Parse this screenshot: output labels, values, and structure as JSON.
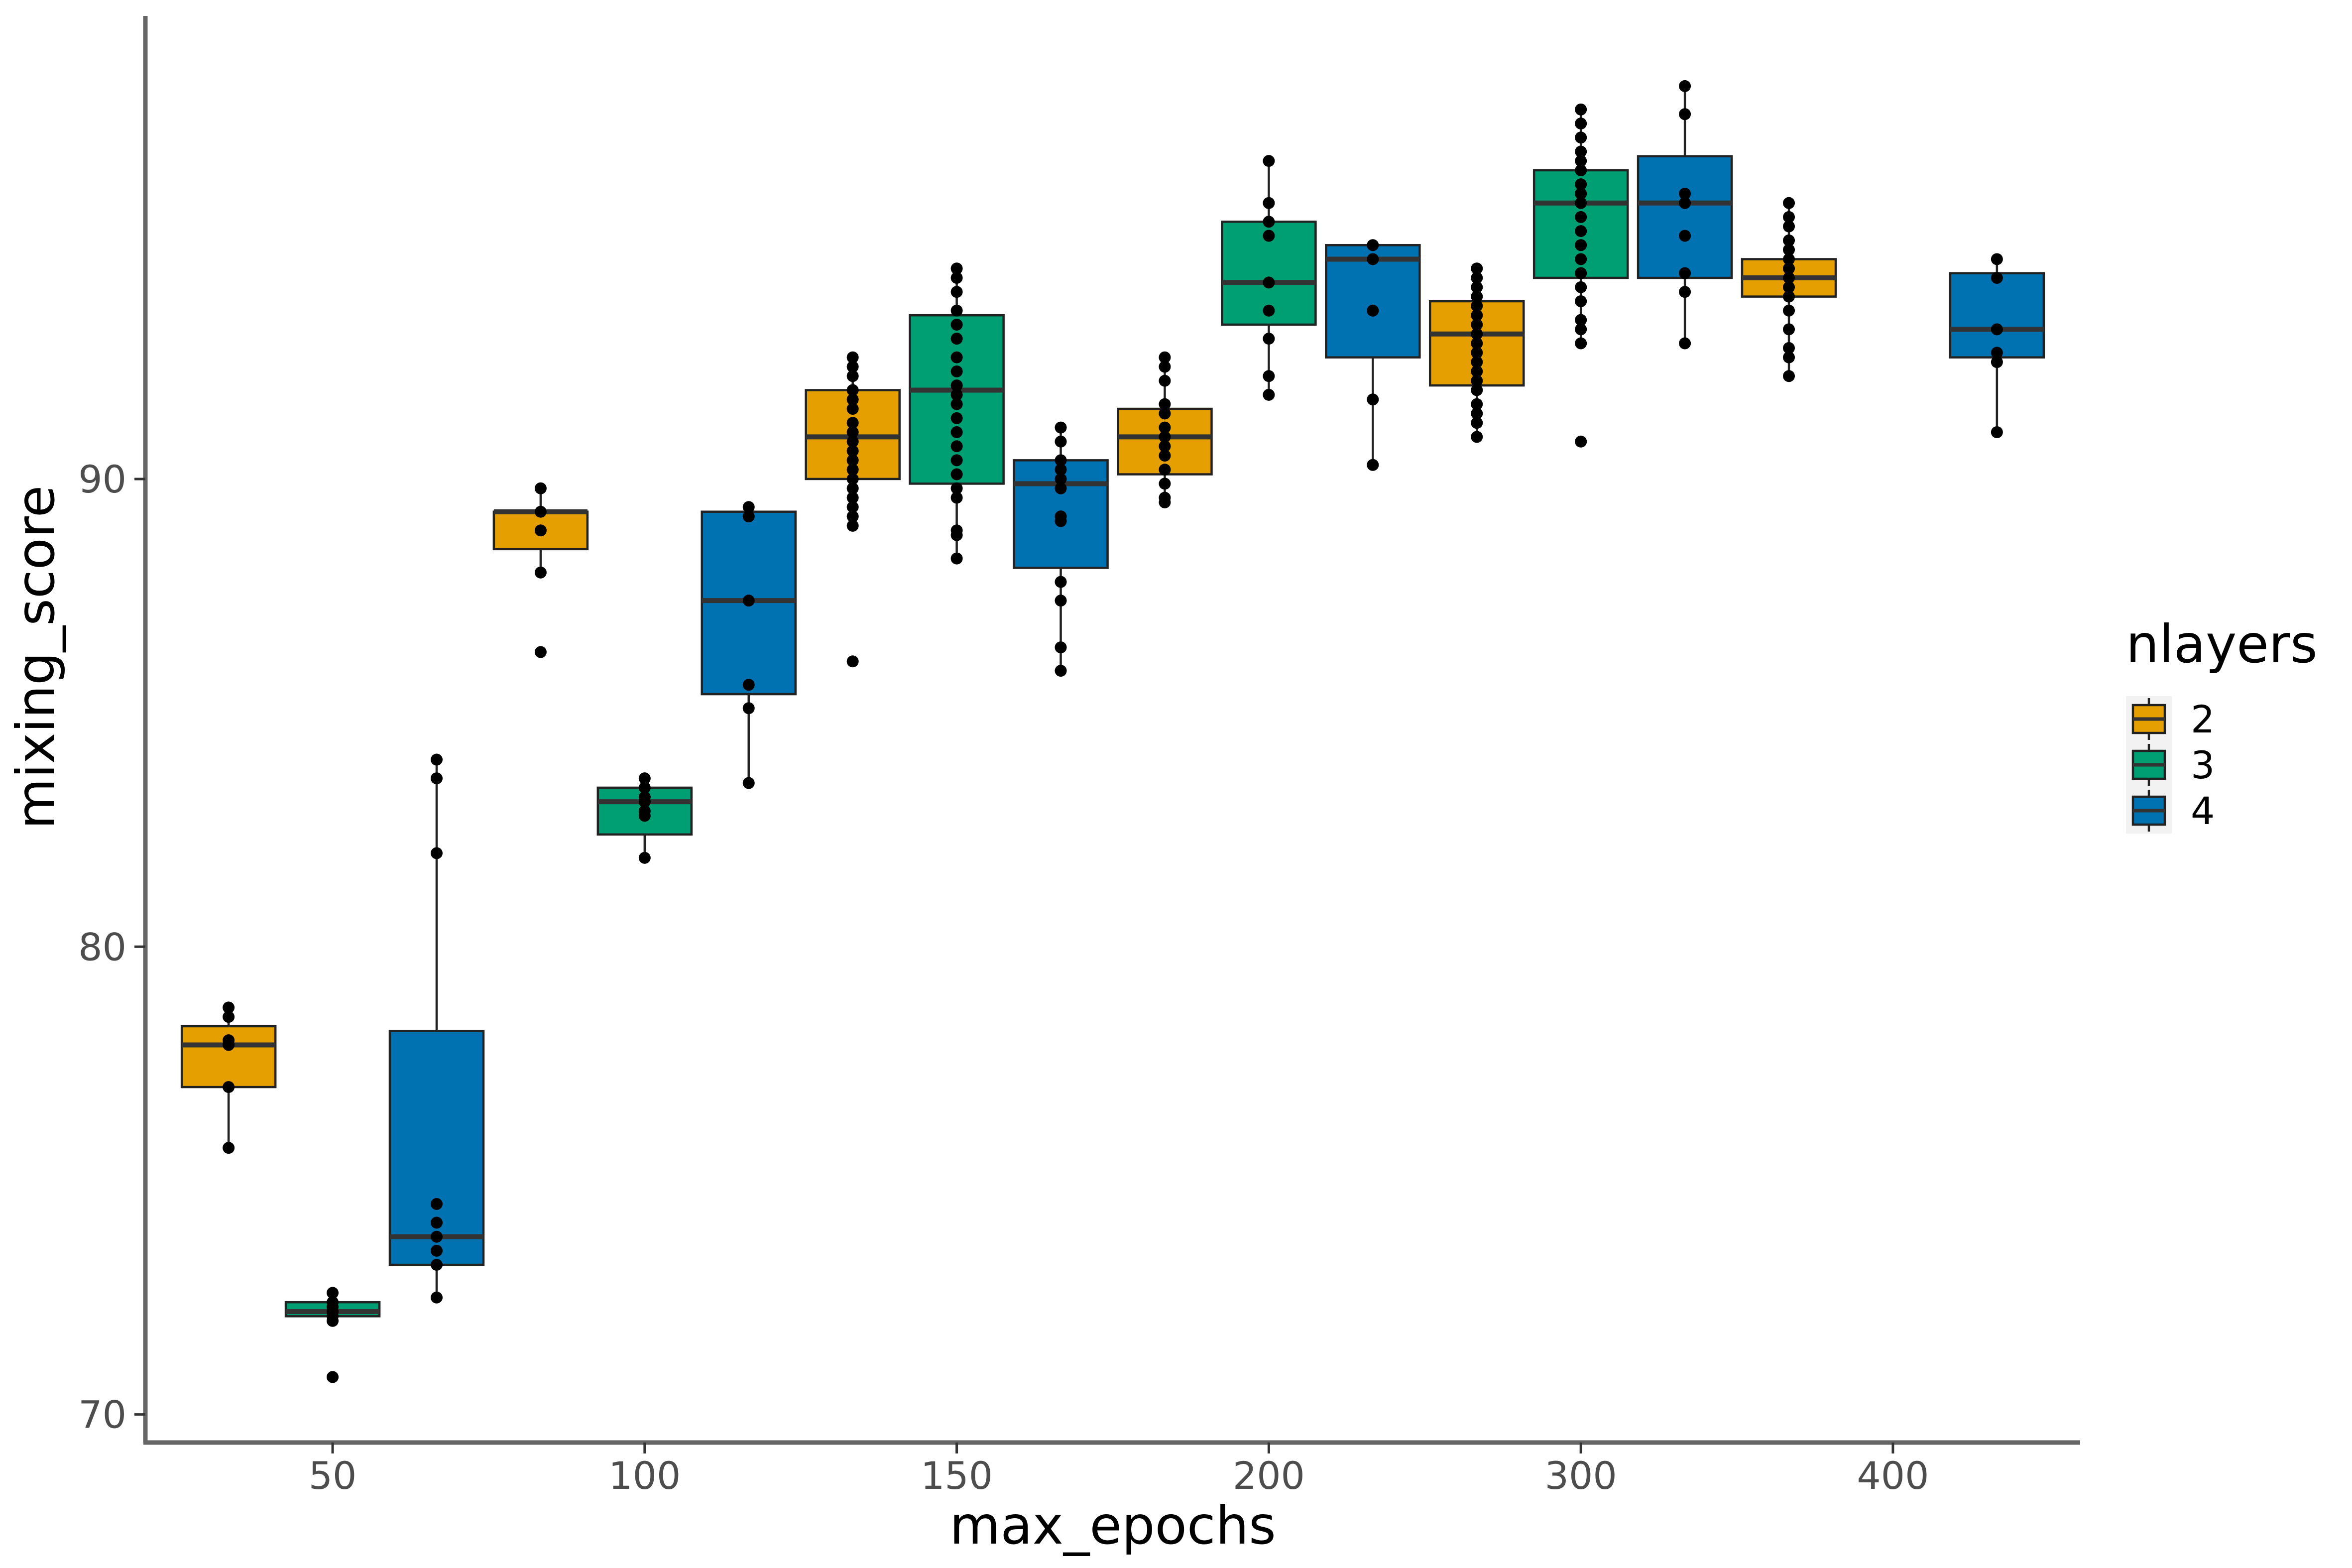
{
  "chart_data": {
    "type": "boxplot",
    "xlabel": "max_epochs",
    "ylabel": "mixing_score",
    "categories": [
      "50",
      "100",
      "150",
      "200",
      "300",
      "400"
    ],
    "yticks": [
      70,
      80,
      90
    ],
    "ylim": [
      69.4,
      99.9
    ],
    "grid": false,
    "legend": {
      "title": "nlayers",
      "position": "right",
      "entries": [
        "2",
        "3",
        "4"
      ]
    },
    "series_colors": {
      "2": "#E69F00",
      "3": "#009E73",
      "4": "#0072B2"
    },
    "boxes": [
      {
        "category": "50",
        "group": "2",
        "whisker_low": 75.7,
        "q1": 77.0,
        "median": 77.9,
        "q3": 78.3,
        "whisker_high": 78.7,
        "points": [
          78.7,
          78.5,
          78.0,
          77.9,
          77.0,
          75.7
        ]
      },
      {
        "category": "50",
        "group": "3",
        "whisker_low": 72.0,
        "q1": 72.1,
        "median": 72.2,
        "q3": 72.4,
        "whisker_high": 72.6,
        "points": [
          72.6,
          72.4,
          72.3,
          72.2,
          72.1,
          72.0,
          70.8
        ]
      },
      {
        "category": "50",
        "group": "4",
        "whisker_low": 72.5,
        "q1": 73.2,
        "median": 73.8,
        "q3": 78.2,
        "whisker_high": 84.0,
        "points": [
          84.0,
          83.6,
          82.0,
          74.5,
          74.1,
          73.8,
          73.5,
          73.2,
          72.5
        ]
      },
      {
        "category": "100",
        "group": "2",
        "whisker_low": 88.0,
        "q1": 88.5,
        "median": 89.3,
        "q3": 89.3,
        "whisker_high": 89.8,
        "points": [
          89.8,
          89.3,
          88.9,
          88.0,
          86.3
        ]
      },
      {
        "category": "100",
        "group": "3",
        "whisker_low": 81.9,
        "q1": 82.4,
        "median": 83.1,
        "q3": 83.4,
        "whisker_high": 83.6,
        "points": [
          83.6,
          83.4,
          83.2,
          83.1,
          82.9,
          82.8,
          81.9
        ]
      },
      {
        "category": "100",
        "group": "4",
        "whisker_low": 83.5,
        "q1": 85.4,
        "median": 87.4,
        "q3": 89.3,
        "whisker_high": 89.4,
        "points": [
          89.4,
          89.2,
          87.4,
          85.6,
          85.1,
          83.5
        ]
      },
      {
        "category": "150",
        "group": "2",
        "whisker_low": 89.0,
        "q1": 90.0,
        "median": 90.9,
        "q3": 91.9,
        "whisker_high": 92.6,
        "points": [
          92.6,
          92.4,
          92.2,
          91.9,
          91.7,
          91.5,
          91.2,
          91.0,
          90.8,
          90.6,
          90.4,
          90.2,
          90.0,
          89.8,
          89.6,
          89.4,
          89.2,
          89.0,
          86.1
        ]
      },
      {
        "category": "150",
        "group": "3",
        "whisker_low": 88.3,
        "q1": 89.9,
        "median": 91.9,
        "q3": 93.5,
        "whisker_high": 94.5,
        "points": [
          94.5,
          94.3,
          94.0,
          93.6,
          93.3,
          93.0,
          92.6,
          92.3,
          92.0,
          91.8,
          91.6,
          91.3,
          91.0,
          90.7,
          90.4,
          90.1,
          89.8,
          89.6,
          88.9,
          88.8,
          88.3
        ]
      },
      {
        "category": "150",
        "group": "4",
        "whisker_low": 85.9,
        "q1": 88.1,
        "median": 89.9,
        "q3": 90.4,
        "whisker_high": 91.1,
        "points": [
          91.1,
          90.8,
          90.4,
          90.2,
          90.0,
          89.8,
          89.2,
          89.1,
          87.8,
          87.4,
          86.4,
          85.9
        ]
      },
      {
        "category": "200",
        "group": "2",
        "whisker_low": 89.5,
        "q1": 90.1,
        "median": 90.9,
        "q3": 91.5,
        "whisker_high": 92.6,
        "points": [
          92.6,
          92.4,
          92.1,
          91.6,
          91.4,
          91.1,
          90.9,
          90.7,
          90.5,
          90.2,
          89.9,
          89.6,
          89.5
        ]
      },
      {
        "category": "200",
        "group": "3",
        "whisker_low": 91.8,
        "q1": 93.3,
        "median": 94.2,
        "q3": 95.5,
        "whisker_high": 96.8,
        "points": [
          96.8,
          95.9,
          95.5,
          95.2,
          94.2,
          93.6,
          93.0,
          92.2,
          91.8
        ]
      },
      {
        "category": "200",
        "group": "4",
        "whisker_low": 90.3,
        "q1": 92.6,
        "median": 94.7,
        "q3": 95.0,
        "whisker_high": 95.0,
        "points": [
          95.0,
          94.7,
          93.6,
          91.7,
          90.3
        ]
      },
      {
        "category": "300",
        "group": "2",
        "whisker_low": 90.9,
        "q1": 92.0,
        "median": 93.1,
        "q3": 93.8,
        "whisker_high": 94.5,
        "points": [
          94.5,
          94.3,
          94.1,
          93.9,
          93.7,
          93.5,
          93.3,
          93.1,
          92.9,
          92.7,
          92.5,
          92.3,
          92.1,
          91.9,
          91.6,
          91.4,
          91.2,
          90.9
        ]
      },
      {
        "category": "300",
        "group": "3",
        "whisker_low": 92.9,
        "q1": 94.3,
        "median": 95.9,
        "q3": 96.6,
        "whisker_high": 97.9,
        "points": [
          97.9,
          97.6,
          97.3,
          97.0,
          96.8,
          96.6,
          96.3,
          96.1,
          95.9,
          95.6,
          95.3,
          95.0,
          94.7,
          94.4,
          94.1,
          93.8,
          93.4,
          93.2,
          92.9,
          90.8
        ]
      },
      {
        "category": "300",
        "group": "4",
        "whisker_low": 92.9,
        "q1": 94.3,
        "median": 95.9,
        "q3": 96.9,
        "whisker_high": 98.4,
        "points": [
          98.4,
          97.8,
          96.1,
          95.9,
          95.2,
          94.4,
          94.0,
          92.9
        ]
      },
      {
        "category": "400",
        "group": "2",
        "whisker_low": 92.2,
        "q1": 93.9,
        "median": 94.3,
        "q3": 94.7,
        "whisker_high": 95.9,
        "points": [
          95.9,
          95.6,
          95.4,
          95.1,
          94.9,
          94.7,
          94.5,
          94.3,
          94.1,
          93.9,
          93.6,
          93.2,
          92.8,
          92.6,
          92.2
        ]
      },
      {
        "category": "400",
        "group": "4",
        "whisker_low": 91.0,
        "q1": 92.6,
        "median": 93.2,
        "q3": 94.4,
        "whisker_high": 94.7,
        "points": [
          94.7,
          94.3,
          93.2,
          92.7,
          92.5,
          91.0
        ]
      }
    ]
  }
}
